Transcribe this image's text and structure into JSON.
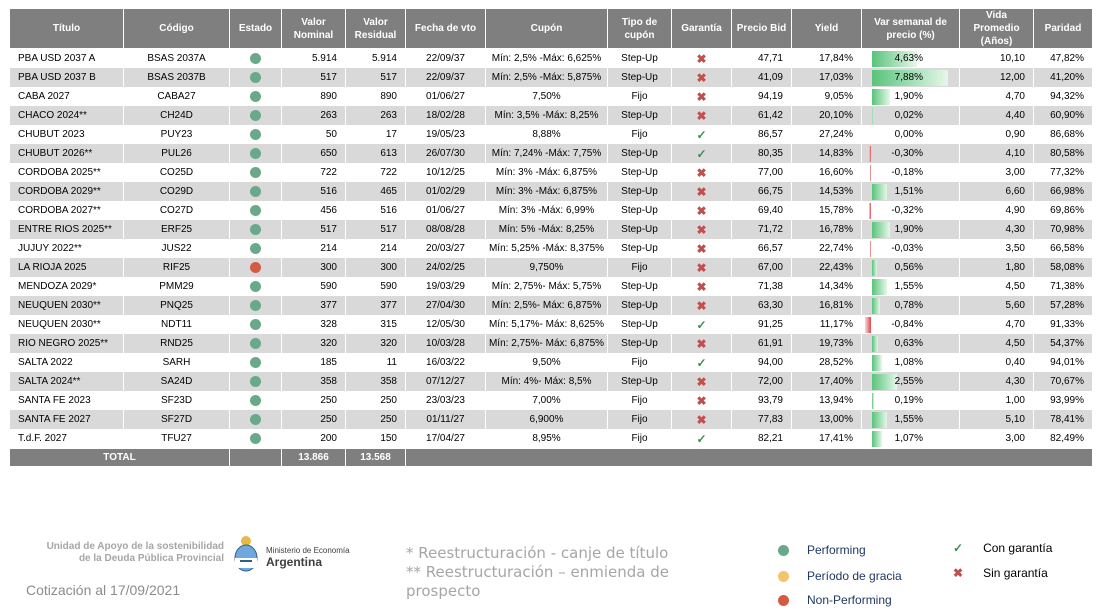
{
  "headers": [
    "Título",
    "Código",
    "Estado",
    "Valor Nominal",
    "Valor Residual",
    "Fecha de vto",
    "Cupón",
    "Tipo de cupón",
    "Garantía",
    "Precio Bid",
    "Yield",
    "Var semanal de precio (%)",
    "Vida Promedio (Años)",
    "Paridad"
  ],
  "colors": {
    "performing": "#6aa88a",
    "grace": "#f2c56b",
    "non_performing": "#d65a43",
    "header": "#7f7f7f",
    "bar_pos": "#58c47a",
    "bar_neg": "#e04848"
  },
  "rows": [
    {
      "titulo": "PBA USD 2037 A",
      "codigo": "BSAS 2037A",
      "estado": "performing",
      "vn": "5.914",
      "vr": "5.914",
      "vto": "22/09/37",
      "cupon": "Mín: 2,5% -Máx: 6,625%",
      "tipo": "Step-Up",
      "garantia": "sin",
      "precio": "47,71",
      "yield": "17,84%",
      "var": "4,63%",
      "var_num": 4.63,
      "vida": "10,10",
      "paridad": "47,82%"
    },
    {
      "titulo": "PBA USD 2037 B",
      "codigo": "BSAS 2037B",
      "estado": "performing",
      "vn": "517",
      "vr": "517",
      "vto": "22/09/37",
      "cupon": "Mín: 2,5% -Máx: 5,875%",
      "tipo": "Step-Up",
      "garantia": "sin",
      "precio": "41,09",
      "yield": "17,03%",
      "var": "7,88%",
      "var_num": 7.88,
      "vida": "12,00",
      "paridad": "41,20%"
    },
    {
      "titulo": "CABA 2027",
      "codigo": "CABA27",
      "estado": "performing",
      "vn": "890",
      "vr": "890",
      "vto": "01/06/27",
      "cupon": "7,50%",
      "tipo": "Fijo",
      "garantia": "sin",
      "precio": "94,19",
      "yield": "9,05%",
      "var": "1,90%",
      "var_num": 1.9,
      "vida": "4,70",
      "paridad": "94,32%"
    },
    {
      "titulo": "CHACO 2024**",
      "codigo": "CH24D",
      "estado": "performing",
      "vn": "263",
      "vr": "263",
      "vto": "18/02/28",
      "cupon": "Mín: 3,5% -Máx: 8,25%",
      "tipo": "Step-Up",
      "garantia": "sin",
      "precio": "61,42",
      "yield": "20,10%",
      "var": "0,02%",
      "var_num": 0.02,
      "vida": "4,40",
      "paridad": "60,90%"
    },
    {
      "titulo": "CHUBUT 2023",
      "codigo": "PUY23",
      "estado": "performing",
      "vn": "50",
      "vr": "17",
      "vto": "19/05/23",
      "cupon": "8,88%",
      "tipo": "Fijo",
      "garantia": "con",
      "precio": "86,57",
      "yield": "27,24%",
      "var": "0,00%",
      "var_num": 0.0,
      "vida": "0,90",
      "paridad": "86,68%"
    },
    {
      "titulo": "CHUBUT 2026**",
      "codigo": "PUL26",
      "estado": "performing",
      "vn": "650",
      "vr": "613",
      "vto": "26/07/30",
      "cupon": "Mín: 7,24% -Máx: 7,75%",
      "tipo": "Step-Up",
      "garantia": "con",
      "precio": "80,35",
      "yield": "14,83%",
      "var": "-0,30%",
      "var_num": -0.3,
      "vida": "4,10",
      "paridad": "80,58%"
    },
    {
      "titulo": "CORDOBA 2025**",
      "codigo": "CO25D",
      "estado": "performing",
      "vn": "722",
      "vr": "722",
      "vto": "10/12/25",
      "cupon": "Mín: 3% -Máx: 6,875%",
      "tipo": "Step-Up",
      "garantia": "sin",
      "precio": "77,00",
      "yield": "16,60%",
      "var": "-0,18%",
      "var_num": -0.18,
      "vida": "3,00",
      "paridad": "77,32%"
    },
    {
      "titulo": "CORDOBA 2029**",
      "codigo": "CO29D",
      "estado": "performing",
      "vn": "516",
      "vr": "465",
      "vto": "01/02/29",
      "cupon": "Mín: 3% -Máx: 6,875%",
      "tipo": "Step-Up",
      "garantia": "sin",
      "precio": "66,75",
      "yield": "14,53%",
      "var": "1,51%",
      "var_num": 1.51,
      "vida": "6,60",
      "paridad": "66,98%"
    },
    {
      "titulo": "CORDOBA 2027**",
      "codigo": "CO27D",
      "estado": "performing",
      "vn": "456",
      "vr": "516",
      "vto": "01/06/27",
      "cupon": "Mín: 3% -Máx: 6,99%",
      "tipo": "Step-Up",
      "garantia": "sin",
      "precio": "69,40",
      "yield": "15,78%",
      "var": "-0,32%",
      "var_num": -0.32,
      "vida": "4,90",
      "paridad": "69,86%"
    },
    {
      "titulo": "ENTRE RIOS 2025**",
      "codigo": "ERF25",
      "estado": "performing",
      "vn": "517",
      "vr": "517",
      "vto": "08/08/28",
      "cupon": "Mín: 5% -Máx: 8,25%",
      "tipo": "Step-Up",
      "garantia": "sin",
      "precio": "71,72",
      "yield": "16,78%",
      "var": "1,90%",
      "var_num": 1.9,
      "vida": "4,30",
      "paridad": "70,98%"
    },
    {
      "titulo": "JUJUY 2022**",
      "codigo": "JUS22",
      "estado": "performing",
      "vn": "214",
      "vr": "214",
      "vto": "20/03/27",
      "cupon": "Mín: 5,25% -Máx: 8,375%",
      "tipo": "Step-Up",
      "garantia": "sin",
      "precio": "66,57",
      "yield": "22,74%",
      "var": "-0,03%",
      "var_num": -0.03,
      "vida": "3,50",
      "paridad": "66,58%"
    },
    {
      "titulo": "LA RIOJA 2025",
      "codigo": "RIF25",
      "estado": "non_performing",
      "vn": "300",
      "vr": "300",
      "vto": "24/02/25",
      "cupon": "9,750%",
      "tipo": "Fijo",
      "garantia": "sin",
      "precio": "67,00",
      "yield": "22,43%",
      "var": "0,56%",
      "var_num": 0.56,
      "vida": "1,80",
      "paridad": "58,08%"
    },
    {
      "titulo": "MENDOZA 2029*",
      "codigo": "PMM29",
      "estado": "performing",
      "vn": "590",
      "vr": "590",
      "vto": "19/03/29",
      "cupon": "Mín: 2,75%- Máx: 5,75%",
      "tipo": "Step-Up",
      "garantia": "sin",
      "precio": "71,38",
      "yield": "14,34%",
      "var": "1,55%",
      "var_num": 1.55,
      "vida": "4,50",
      "paridad": "71,38%"
    },
    {
      "titulo": "NEUQUEN 2030**",
      "codigo": "PNQ25",
      "estado": "performing",
      "vn": "377",
      "vr": "377",
      "vto": "27/04/30",
      "cupon": "Mín: 2,5%- Máx: 6,875%",
      "tipo": "Step-Up",
      "garantia": "sin",
      "precio": "63,30",
      "yield": "16,81%",
      "var": "0,78%",
      "var_num": 0.78,
      "vida": "5,60",
      "paridad": "57,28%"
    },
    {
      "titulo": "NEUQUEN 2030**",
      "codigo": "NDT11",
      "estado": "performing",
      "vn": "328",
      "vr": "315",
      "vto": "12/05/30",
      "cupon": "Mín: 5,17%- Máx: 8,625%",
      "tipo": "Step-Up",
      "garantia": "con",
      "precio": "91,25",
      "yield": "11,17%",
      "var": "-0,84%",
      "var_num": -0.84,
      "vida": "4,70",
      "paridad": "91,33%"
    },
    {
      "titulo": "RIO NEGRO 2025**",
      "codigo": "RND25",
      "estado": "performing",
      "vn": "320",
      "vr": "320",
      "vto": "10/03/28",
      "cupon": "Mín: 2,75%- Máx: 6,875%",
      "tipo": "Step-Up",
      "garantia": "sin",
      "precio": "61,91",
      "yield": "19,73%",
      "var": "0,63%",
      "var_num": 0.63,
      "vida": "4,50",
      "paridad": "54,37%"
    },
    {
      "titulo": "SALTA 2022",
      "codigo": "SARH",
      "estado": "performing",
      "vn": "185",
      "vr": "11",
      "vto": "16/03/22",
      "cupon": "9,50%",
      "tipo": "Fijo",
      "garantia": "con",
      "precio": "94,00",
      "yield": "28,52%",
      "var": "1,08%",
      "var_num": 1.08,
      "vida": "0,40",
      "paridad": "94,01%"
    },
    {
      "titulo": "SALTA 2024**",
      "codigo": "SA24D",
      "estado": "performing",
      "vn": "358",
      "vr": "358",
      "vto": "07/12/27",
      "cupon": "Mín: 4%- Máx: 8,5%",
      "tipo": "Step-Up",
      "garantia": "sin",
      "precio": "72,00",
      "yield": "17,40%",
      "var": "2,55%",
      "var_num": 2.55,
      "vida": "4,30",
      "paridad": "70,67%"
    },
    {
      "titulo": "SANTA FE 2023",
      "codigo": "SF23D",
      "estado": "performing",
      "vn": "250",
      "vr": "250",
      "vto": "23/03/23",
      "cupon": "7,00%",
      "tipo": "Fijo",
      "garantia": "sin",
      "precio": "93,79",
      "yield": "13,94%",
      "var": "0,19%",
      "var_num": 0.19,
      "vida": "1,00",
      "paridad": "93,99%"
    },
    {
      "titulo": "SANTA FE 2027",
      "codigo": "SF27D",
      "estado": "performing",
      "vn": "250",
      "vr": "250",
      "vto": "01/11/27",
      "cupon": "6,900%",
      "tipo": "Fijo",
      "garantia": "sin",
      "precio": "77,83",
      "yield": "13,00%",
      "var": "1,55%",
      "var_num": 1.55,
      "vida": "5,10",
      "paridad": "78,41%"
    },
    {
      "titulo": "T.d.F. 2027",
      "codigo": "TFU27",
      "estado": "performing",
      "vn": "200",
      "vr": "150",
      "vto": "17/04/27",
      "cupon": "8,95%",
      "tipo": "Fijo",
      "garantia": "con",
      "precio": "82,21",
      "yield": "17,41%",
      "var": "1,07%",
      "var_num": 1.07,
      "vida": "3,00",
      "paridad": "82,49%"
    }
  ],
  "total": {
    "label": "TOTAL",
    "vn": "13.866",
    "vr": "13.568"
  },
  "footer": {
    "org_line1": "Unidad de Apoyo de la sostenibilidad",
    "org_line2": "de la Deuda Pública Provincial",
    "ministry_line1": "Ministerio de Economía",
    "ministry_line2": "Argentina",
    "cotizacion": "Cotización al 17/09/2021",
    "note1": "*  Reestructuración - canje de título",
    "note2": "**  Reestructuración – enmienda de prospecto",
    "legend_performing": "Performing",
    "legend_grace": "Período de gracia",
    "legend_nonperforming": "Non-Performing",
    "legend_con": "Con garantía",
    "legend_sin": "Sin garantía"
  }
}
